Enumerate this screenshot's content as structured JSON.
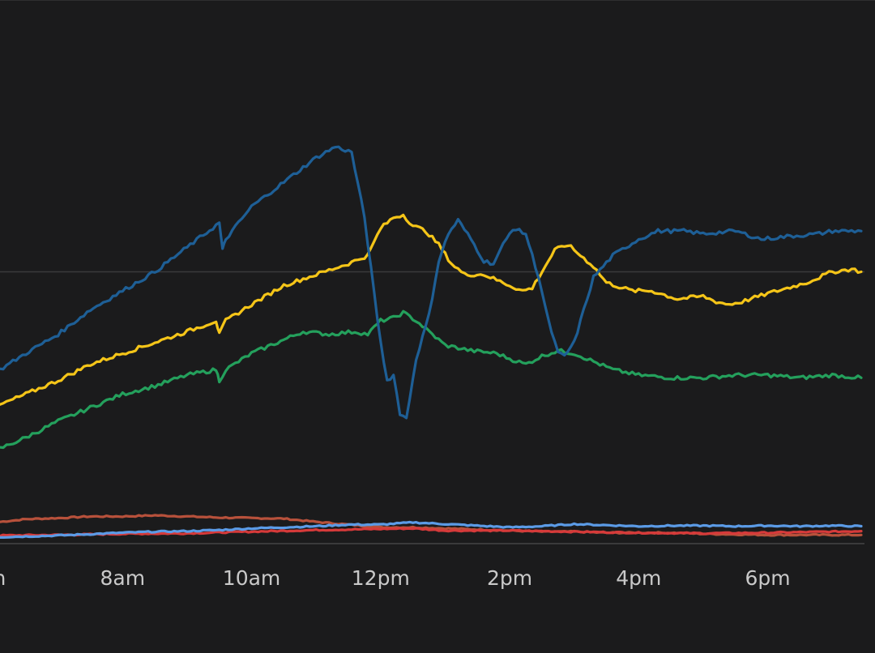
{
  "chart_data": {
    "type": "line",
    "x_unit": "hours",
    "xlim": [
      6.1,
      19.5
    ],
    "ylim": [
      0,
      100
    ],
    "grid": "single horizontal line",
    "legend": "none",
    "x_ticks": [
      {
        "value": 6,
        "label": "m"
      },
      {
        "value": 8,
        "label": "8am"
      },
      {
        "value": 10,
        "label": "10am"
      },
      {
        "value": 12,
        "label": "12pm"
      },
      {
        "value": 14,
        "label": "2pm"
      },
      {
        "value": 16,
        "label": "4pm"
      },
      {
        "value": 18,
        "label": "6pm"
      }
    ],
    "gridline_y": 50,
    "series": [
      {
        "color": "#1e5f96",
        "points": [
          [
            6.1,
            32
          ],
          [
            6.5,
            35
          ],
          [
            7.0,
            38.5
          ],
          [
            7.5,
            43
          ],
          [
            8.0,
            46.5
          ],
          [
            8.5,
            50
          ],
          [
            9.0,
            54.5
          ],
          [
            9.5,
            59
          ],
          [
            9.55,
            54
          ],
          [
            9.6,
            56
          ],
          [
            10.0,
            62
          ],
          [
            10.5,
            66.5
          ],
          [
            11.0,
            71
          ],
          [
            11.3,
            73
          ],
          [
            11.55,
            72
          ],
          [
            11.75,
            60
          ],
          [
            11.9,
            46
          ],
          [
            12.0,
            37
          ],
          [
            12.1,
            30
          ],
          [
            12.2,
            31
          ],
          [
            12.3,
            24
          ],
          [
            12.4,
            23
          ],
          [
            12.55,
            34
          ],
          [
            12.75,
            42
          ],
          [
            12.9,
            52
          ],
          [
            13.05,
            57
          ],
          [
            13.2,
            59.5
          ],
          [
            13.4,
            56
          ],
          [
            13.6,
            52
          ],
          [
            13.75,
            51.5
          ],
          [
            13.9,
            55
          ],
          [
            14.05,
            58
          ],
          [
            14.25,
            57
          ],
          [
            14.45,
            49
          ],
          [
            14.6,
            41
          ],
          [
            14.75,
            35
          ],
          [
            14.85,
            34.5
          ],
          [
            15.0,
            37
          ],
          [
            15.15,
            43
          ],
          [
            15.3,
            49
          ],
          [
            15.6,
            53
          ],
          [
            16.0,
            56
          ],
          [
            16.3,
            57.5
          ],
          [
            16.7,
            57.5
          ],
          [
            17.0,
            57
          ],
          [
            17.5,
            57.5
          ],
          [
            17.9,
            56
          ],
          [
            18.3,
            56.5
          ],
          [
            18.8,
            57
          ],
          [
            19.0,
            57.5
          ],
          [
            19.3,
            57.5
          ],
          [
            19.45,
            57.5
          ]
        ]
      },
      {
        "color": "#f5c518",
        "points": [
          [
            6.1,
            25.5
          ],
          [
            6.5,
            27.5
          ],
          [
            7.0,
            30
          ],
          [
            7.5,
            33
          ],
          [
            8.0,
            35
          ],
          [
            8.5,
            37
          ],
          [
            9.0,
            39
          ],
          [
            9.45,
            41
          ],
          [
            9.5,
            38.5
          ],
          [
            9.6,
            41
          ],
          [
            10.0,
            44
          ],
          [
            10.5,
            47.5
          ],
          [
            11.0,
            49.5
          ],
          [
            11.5,
            51.5
          ],
          [
            11.8,
            53
          ],
          [
            12.0,
            58
          ],
          [
            12.2,
            60
          ],
          [
            12.35,
            60.5
          ],
          [
            12.5,
            58.5
          ],
          [
            12.7,
            57.5
          ],
          [
            12.9,
            55
          ],
          [
            13.1,
            51.5
          ],
          [
            13.3,
            49.5
          ],
          [
            13.6,
            49.5
          ],
          [
            13.9,
            48
          ],
          [
            14.2,
            46.5
          ],
          [
            14.35,
            47
          ],
          [
            14.5,
            50
          ],
          [
            14.7,
            54
          ],
          [
            14.9,
            55
          ],
          [
            15.1,
            53
          ],
          [
            15.3,
            51
          ],
          [
            15.5,
            48
          ],
          [
            15.9,
            46.5
          ],
          [
            16.2,
            46.5
          ],
          [
            16.6,
            45
          ],
          [
            17.0,
            45.5
          ],
          [
            17.2,
            44.5
          ],
          [
            17.4,
            44
          ],
          [
            17.6,
            44.5
          ],
          [
            18.0,
            46
          ],
          [
            18.3,
            47
          ],
          [
            18.6,
            48
          ],
          [
            19.0,
            50
          ],
          [
            19.3,
            50.5
          ],
          [
            19.45,
            50
          ]
        ]
      },
      {
        "color": "#24a05c",
        "points": [
          [
            6.1,
            17.5
          ],
          [
            6.5,
            19.5
          ],
          [
            7.0,
            22.5
          ],
          [
            7.5,
            25
          ],
          [
            8.0,
            27.5
          ],
          [
            8.5,
            29
          ],
          [
            9.0,
            31
          ],
          [
            9.45,
            32
          ],
          [
            9.5,
            30
          ],
          [
            9.6,
            32
          ],
          [
            10.0,
            35
          ],
          [
            10.5,
            37.5
          ],
          [
            10.8,
            39
          ],
          [
            11.2,
            38.5
          ],
          [
            11.6,
            39
          ],
          [
            11.8,
            38.5
          ],
          [
            12.0,
            41
          ],
          [
            12.2,
            41.5
          ],
          [
            12.35,
            42.5
          ],
          [
            12.55,
            41
          ],
          [
            12.75,
            39
          ],
          [
            13.0,
            36.5
          ],
          [
            13.4,
            35.5
          ],
          [
            13.8,
            35
          ],
          [
            14.0,
            34
          ],
          [
            14.25,
            33
          ],
          [
            14.5,
            34.5
          ],
          [
            14.75,
            35.5
          ],
          [
            15.0,
            35
          ],
          [
            15.3,
            33.5
          ],
          [
            15.6,
            32
          ],
          [
            16.0,
            31
          ],
          [
            16.5,
            30.5
          ],
          [
            17.0,
            30.5
          ],
          [
            17.5,
            31
          ],
          [
            18.0,
            31
          ],
          [
            18.5,
            30.5
          ],
          [
            19.0,
            31
          ],
          [
            19.45,
            30.5
          ]
        ]
      },
      {
        "color": "#b8513b",
        "points": [
          [
            6.1,
            4
          ],
          [
            6.5,
            4.5
          ],
          [
            7.0,
            4.7
          ],
          [
            7.5,
            5
          ],
          [
            8.0,
            5
          ],
          [
            8.5,
            5.2
          ],
          [
            9.0,
            5
          ],
          [
            9.5,
            4.8
          ],
          [
            10.0,
            4.7
          ],
          [
            10.5,
            4.6
          ],
          [
            11.0,
            4
          ],
          [
            11.5,
            3.5
          ],
          [
            12.0,
            3
          ],
          [
            12.5,
            3
          ],
          [
            13.0,
            2.8
          ],
          [
            13.5,
            2.6
          ],
          [
            14.0,
            2.4
          ],
          [
            14.5,
            2.2
          ],
          [
            15.0,
            2.2
          ],
          [
            15.5,
            2
          ],
          [
            16.0,
            2
          ],
          [
            16.5,
            2
          ],
          [
            17.0,
            1.8
          ],
          [
            17.5,
            1.7
          ],
          [
            18.0,
            1.6
          ],
          [
            18.5,
            1.6
          ],
          [
            19.0,
            1.6
          ],
          [
            19.45,
            1.6
          ]
        ]
      },
      {
        "color": "#d63a3a",
        "points": [
          [
            6.1,
            1.5
          ],
          [
            7.0,
            1.6
          ],
          [
            8.0,
            1.8
          ],
          [
            9.0,
            1.9
          ],
          [
            10.0,
            2.2
          ],
          [
            11.0,
            2.5
          ],
          [
            12.0,
            2.7
          ],
          [
            12.5,
            2.8
          ],
          [
            13.0,
            2.4
          ],
          [
            14.0,
            2.4
          ],
          [
            15.0,
            2.2
          ],
          [
            16.0,
            2
          ],
          [
            17.0,
            1.9
          ],
          [
            18.0,
            2
          ],
          [
            19.0,
            2.2
          ],
          [
            19.45,
            2.3
          ]
        ]
      },
      {
        "color": "#5b9be6",
        "points": [
          [
            6.1,
            1.2
          ],
          [
            7.0,
            1.5
          ],
          [
            8.0,
            2
          ],
          [
            8.5,
            2.2
          ],
          [
            9.0,
            2.3
          ],
          [
            9.5,
            2.5
          ],
          [
            10.0,
            2.8
          ],
          [
            10.5,
            3
          ],
          [
            11.0,
            3.2
          ],
          [
            11.5,
            3.5
          ],
          [
            12.0,
            3.5
          ],
          [
            12.5,
            3.9
          ],
          [
            13.0,
            3.6
          ],
          [
            13.5,
            3.3
          ],
          [
            14.0,
            3
          ],
          [
            14.5,
            3.2
          ],
          [
            15.0,
            3.6
          ],
          [
            15.5,
            3.4
          ],
          [
            16.0,
            3.2
          ],
          [
            16.5,
            3.3
          ],
          [
            17.0,
            3.3
          ],
          [
            17.5,
            3.2
          ],
          [
            18.0,
            3.3
          ],
          [
            18.5,
            3.2
          ],
          [
            19.0,
            3.3
          ],
          [
            19.45,
            3.2
          ]
        ]
      }
    ]
  }
}
